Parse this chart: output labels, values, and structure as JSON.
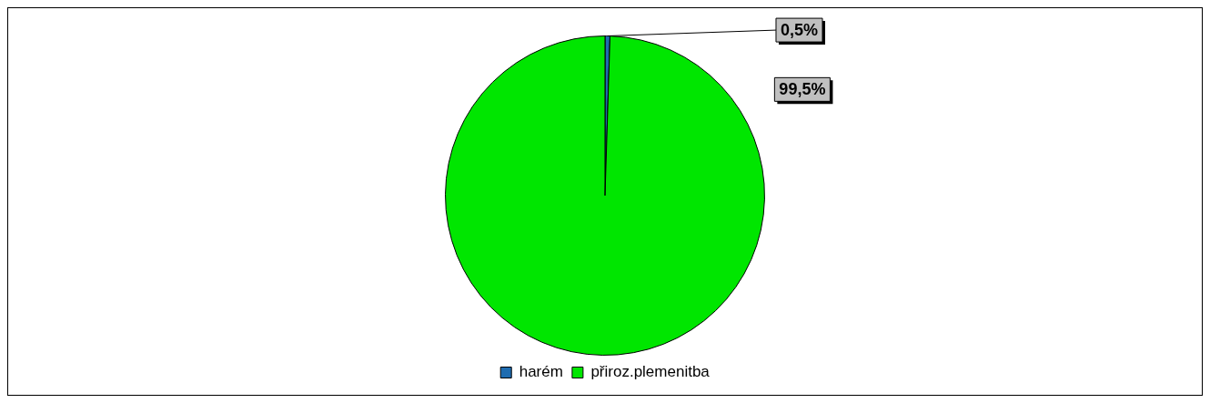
{
  "chart_data": {
    "type": "pie",
    "categories": [
      "harém",
      "přiroz.plemenitba"
    ],
    "values": [
      0.5,
      99.5
    ],
    "colors": [
      "#1f6cb0",
      "#00e600"
    ],
    "value_labels": [
      "0,5%",
      "99,5%"
    ],
    "legend": "bottom"
  }
}
